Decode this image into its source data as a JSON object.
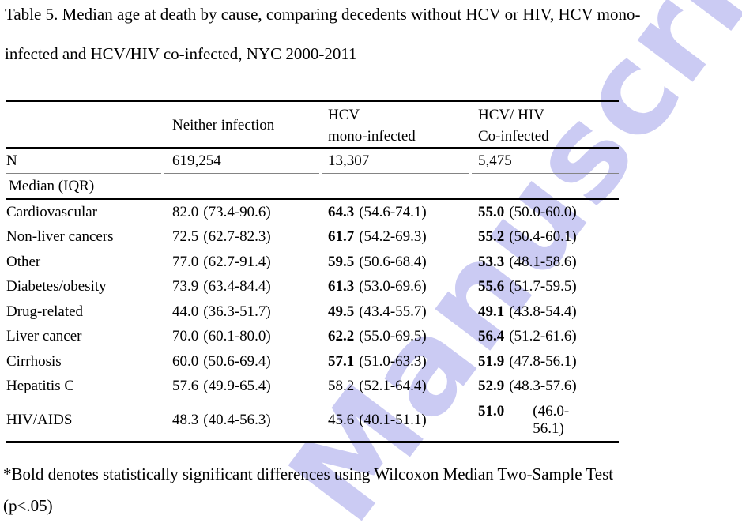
{
  "title": {
    "line1": "Table 5. Median age at death by cause, comparing decedents without HCV or HIV, HCV mono-",
    "line2": "infected and HCV/HIV co-infected, NYC 2000-2011"
  },
  "watermark": {
    "text": "Manuscript",
    "color": "#cbcbf3"
  },
  "table": {
    "header": {
      "col2": "Neither infection",
      "col3": [
        "HCV",
        "mono-infected"
      ],
      "col4": [
        "HCV/ HIV",
        "Co-infected"
      ]
    },
    "n_row": {
      "label": "N",
      "values": [
        "619,254",
        "13,307",
        "5,475"
      ]
    },
    "section_label": "Median (IQR)",
    "rows": [
      {
        "cause": "Cardiovascular",
        "cells": [
          {
            "m": "82.0",
            "iqr": "(73.4-90.6)",
            "bold": false
          },
          {
            "m": "64.3",
            "iqr": "(54.6-74.1)",
            "bold": true
          },
          {
            "m": "55.0",
            "iqr": "(50.0-60.0)",
            "bold": true
          }
        ]
      },
      {
        "cause": "Non-liver cancers",
        "cells": [
          {
            "m": "72.5",
            "iqr": "(62.7-82.3)",
            "bold": false
          },
          {
            "m": "61.7",
            "iqr": "(54.2-69.3)",
            "bold": true
          },
          {
            "m": "55.2",
            "iqr": "(50.4-60.1)",
            "bold": true
          }
        ]
      },
      {
        "cause": "Other",
        "cells": [
          {
            "m": "77.0",
            "iqr": "(62.7-91.4)",
            "bold": false
          },
          {
            "m": "59.5",
            "iqr": "(50.6-68.4)",
            "bold": true
          },
          {
            "m": "53.3",
            "iqr": "(48.1-58.6)",
            "bold": true
          }
        ]
      },
      {
        "cause": "Diabetes/obesity",
        "cells": [
          {
            "m": "73.9",
            "iqr": "(63.4-84.4)",
            "bold": false
          },
          {
            "m": "61.3",
            "iqr": "(53.0-69.6)",
            "bold": true
          },
          {
            "m": "55.6",
            "iqr": "(51.7-59.5)",
            "bold": true
          }
        ]
      },
      {
        "cause": "Drug-related",
        "cells": [
          {
            "m": "44.0",
            "iqr": "(36.3-51.7)",
            "bold": false
          },
          {
            "m": "49.5",
            "iqr": "(43.4-55.7)",
            "bold": true
          },
          {
            "m": "49.1",
            "iqr": "(43.8-54.4)",
            "bold": true
          }
        ]
      },
      {
        "cause": "Liver cancer",
        "cells": [
          {
            "m": "70.0",
            "iqr": "(60.1-80.0)",
            "bold": false
          },
          {
            "m": "62.2",
            "iqr": "(55.0-69.5)",
            "bold": true
          },
          {
            "m": "56.4",
            "iqr": "(51.2-61.6)",
            "bold": true
          }
        ]
      },
      {
        "cause": "Cirrhosis",
        "cells": [
          {
            "m": "60.0",
            "iqr": "(50.6-69.4)",
            "bold": false
          },
          {
            "m": "57.1",
            "iqr": "(51.0-63.3)",
            "bold": true
          },
          {
            "m": "51.9",
            "iqr": "(47.8-56.1)",
            "bold": true
          }
        ]
      },
      {
        "cause": "Hepatitis C",
        "cells": [
          {
            "m": "57.6",
            "iqr": "(49.9-65.4)",
            "bold": false
          },
          {
            "m": "58.2",
            "iqr": "(52.1-64.4)",
            "bold": false
          },
          {
            "m": "52.9",
            "iqr": "(48.3-57.6)",
            "bold": true
          }
        ]
      },
      {
        "cause": "HIV/AIDS",
        "cells": [
          {
            "m": "48.3",
            "iqr": "(40.4-56.3)",
            "bold": false
          },
          {
            "m": "45.6",
            "iqr": "(40.1-51.1)",
            "bold": false
          },
          {
            "m": "51.0",
            "iqr": "(46.0-",
            "bold": true,
            "line2": "56.1)"
          }
        ]
      }
    ]
  },
  "footnote": {
    "line1": "*Bold denotes statistically significant differences using Wilcoxon Median Two-Sample Test",
    "line2": "(p<.05)"
  }
}
